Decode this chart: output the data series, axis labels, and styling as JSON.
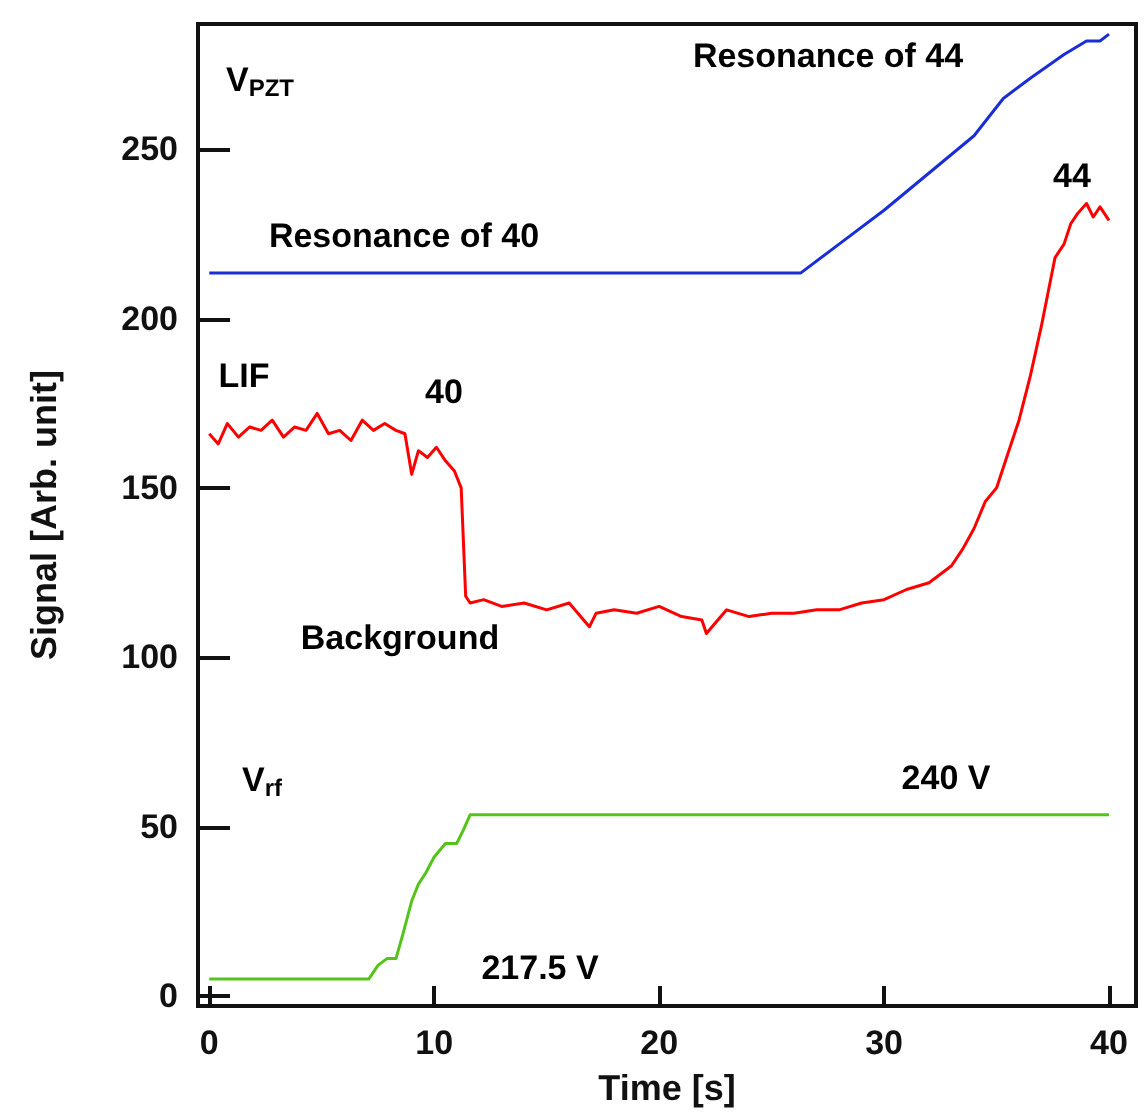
{
  "chart_data": {
    "type": "line",
    "xlabel": "Time [s]",
    "ylabel": "Signal [Arb. unit]",
    "xlim": [
      -0.5,
      41.2
    ],
    "ylim": [
      -3,
      287
    ],
    "xticks": [
      0,
      10,
      20,
      30,
      40
    ],
    "yticks": [
      0,
      50,
      100,
      150,
      200,
      250
    ],
    "grid": false,
    "marker": "none",
    "line_style": "solid",
    "series": [
      {
        "color": "#1a2ed6",
        "x": [
          0,
          5,
          10,
          15,
          20,
          26.3,
          28,
          30,
          32,
          34,
          35.3,
          36.5,
          38,
          39,
          39.6,
          40
        ],
        "values": [
          213.5,
          213.5,
          213.5,
          213.5,
          213.5,
          213.5,
          222,
          232,
          243,
          254,
          265,
          271,
          278,
          282,
          282,
          284
        ]
      },
      {
        "color": "#ff0000",
        "x": [
          0,
          0.4,
          0.8,
          1.3,
          1.8,
          2.3,
          2.8,
          3.3,
          3.8,
          4.3,
          4.8,
          5.3,
          5.8,
          6.3,
          6.8,
          7.3,
          7.8,
          8.3,
          8.7,
          9.0,
          9.3,
          9.7,
          10.1,
          10.5,
          10.9,
          11.2,
          11.4,
          11.6,
          12.2,
          13,
          14,
          15,
          16,
          16.9,
          17.2,
          18,
          19,
          20,
          21,
          21.9,
          22.1,
          23,
          24,
          25,
          26,
          27,
          28,
          29,
          30,
          31,
          32,
          33,
          33.5,
          34,
          34.5,
          35,
          35.5,
          36,
          36.5,
          37,
          37.3,
          37.6,
          38,
          38.3,
          38.6,
          39,
          39.3,
          39.6,
          40
        ],
        "values": [
          166,
          163,
          169,
          165,
          168,
          167,
          170,
          165,
          168,
          167,
          172,
          166,
          167,
          164,
          170,
          167,
          169,
          167,
          166,
          154,
          161,
          159,
          162,
          158,
          155,
          150,
          118,
          116,
          117,
          115,
          116,
          114,
          116,
          109,
          113,
          114,
          113,
          115,
          112,
          111,
          107,
          114,
          112,
          113,
          113,
          114,
          114,
          116,
          117,
          120,
          122,
          127,
          132,
          138,
          146,
          150,
          160,
          170,
          183,
          198,
          208,
          218,
          222,
          228,
          231,
          234,
          230,
          233,
          229
        ]
      },
      {
        "color": "#55c41a",
        "x": [
          0,
          3,
          7.1,
          7.5,
          7.9,
          8.3,
          8.6,
          9.0,
          9.3,
          9.6,
          10.0,
          10.5,
          11.0,
          11.3,
          11.6,
          15,
          20,
          25,
          30,
          35,
          40
        ],
        "values": [
          5,
          5,
          5,
          9,
          11,
          11,
          18,
          28,
          33,
          36,
          41,
          45,
          45,
          49,
          53.5,
          53.5,
          53.5,
          53.5,
          53.5,
          53.5,
          53.5
        ]
      }
    ],
    "annotations": [
      "V$_{PZT}$",
      "Resonance of 40",
      "Resonance of 44",
      "LIF",
      "40",
      "44",
      "Background",
      "V$_{rf}$",
      "240 V",
      "217.5 V"
    ]
  }
}
